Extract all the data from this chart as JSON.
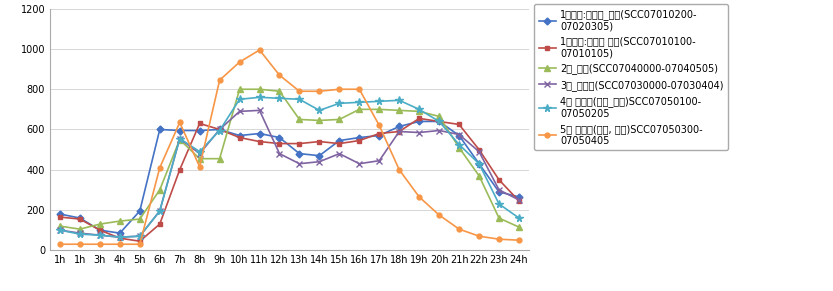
{
  "hours": [
    "1h",
    "1h",
    "3h",
    "4h",
    "5h",
    "6h",
    "7h",
    "8h",
    "9h",
    "10h",
    "11h",
    "12h",
    "13h",
    "14h",
    "15h",
    "16h",
    "17h",
    "18h",
    "19h",
    "20h",
    "21h",
    "22h",
    "23h",
    "24h"
  ],
  "series": [
    {
      "label": "1종일반:승용차_택시(SCC07010200-\n07020305)",
      "color": "#4472C4",
      "marker": "D",
      "markersize": 3.5,
      "linewidth": 1.2,
      "values": [
        180,
        160,
        100,
        85,
        195,
        600,
        595,
        595,
        600,
        570,
        580,
        560,
        480,
        470,
        545,
        560,
        570,
        615,
        640,
        640,
        570,
        430,
        290,
        265
      ]
    },
    {
      "label": "1종경자:승용차 경형(SCC07010100-\n07010105)",
      "color": "#BE4B48",
      "marker": "s",
      "markersize": 3.5,
      "linewidth": 1.2,
      "values": [
        165,
        155,
        100,
        60,
        45,
        130,
        400,
        630,
        600,
        560,
        540,
        530,
        530,
        540,
        530,
        545,
        580,
        590,
        655,
        640,
        625,
        500,
        350,
        245
      ]
    },
    {
      "label": "2종_버스(SCC07040000-07040505)",
      "color": "#9BBB59",
      "marker": "^",
      "markersize": 4.5,
      "linewidth": 1.2,
      "values": [
        120,
        105,
        130,
        145,
        155,
        300,
        550,
        455,
        455,
        800,
        800,
        790,
        650,
        645,
        650,
        700,
        700,
        695,
        690,
        665,
        510,
        370,
        160,
        115
      ]
    },
    {
      "label": "3종_승합차(SCC07030000-07030404)",
      "color": "#8064A2",
      "marker": "x",
      "markersize": 5,
      "linewidth": 1.2,
      "values": [
        100,
        85,
        75,
        65,
        70,
        195,
        555,
        480,
        600,
        690,
        695,
        480,
        430,
        440,
        480,
        430,
        445,
        590,
        585,
        595,
        575,
        490,
        300,
        250
      ]
    },
    {
      "label": "4종 화물차(소형_중형)SCC07050100-\n07050205",
      "color": "#4BACC6",
      "marker": "*",
      "markersize": 5.5,
      "linewidth": 1.2,
      "values": [
        100,
        80,
        75,
        65,
        70,
        195,
        555,
        490,
        595,
        750,
        760,
        755,
        750,
        695,
        730,
        735,
        740,
        745,
        700,
        640,
        525,
        430,
        230,
        160
      ]
    },
    {
      "label": "5종 화물차(대형, 특수)SCC07050300-\n07050405",
      "color": "#F79646",
      "marker": "o",
      "markersize": 3.5,
      "linewidth": 1.2,
      "values": [
        30,
        30,
        30,
        30,
        30,
        410,
        635,
        415,
        845,
        935,
        995,
        870,
        790,
        790,
        800,
        800,
        620,
        400,
        265,
        175,
        105,
        70,
        55,
        50
      ]
    }
  ],
  "ylim": [
    0,
    1200
  ],
  "yticks": [
    0,
    200,
    400,
    600,
    800,
    1000,
    1200
  ],
  "background_color": "#FFFFFF",
  "grid_color": "#D0D0D0",
  "legend_fontsize": 7,
  "axis_fontsize": 7
}
